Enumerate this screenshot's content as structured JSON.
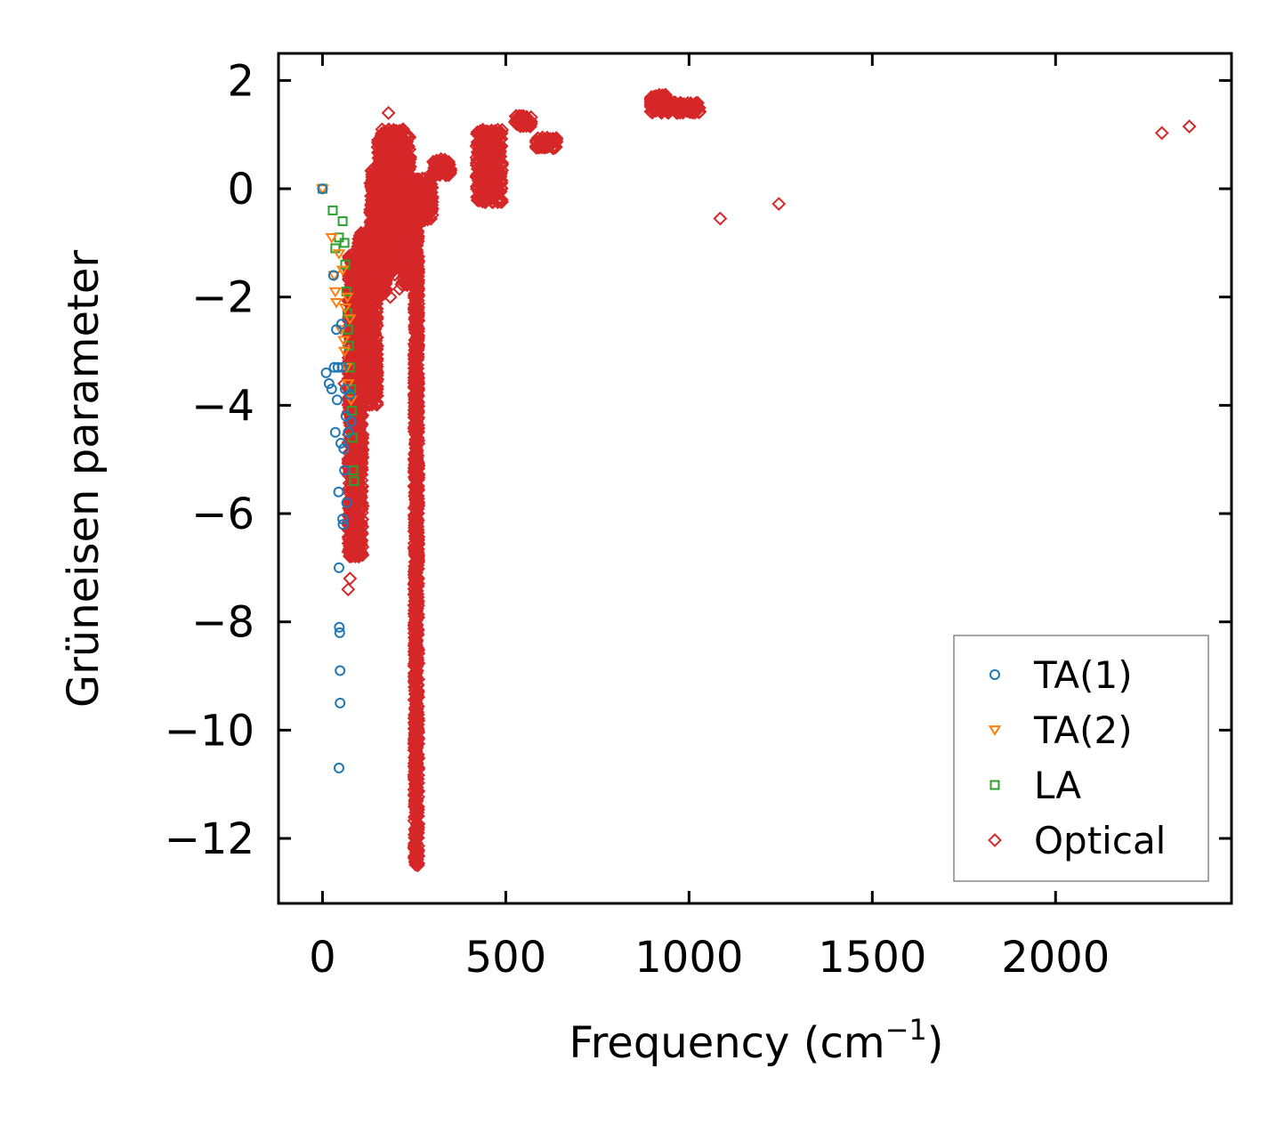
{
  "chart_data": {
    "type": "scatter",
    "title": "",
    "xlabel": "Frequency (cm",
    "xlabel_sup": "−1",
    "xlabel_close": ")",
    "ylabel": "Grüneisen parameter",
    "xlim": [
      -120,
      2480
    ],
    "ylim": [
      -13.2,
      2.5
    ],
    "xticks": [
      0,
      500,
      1000,
      1500,
      2000
    ],
    "yticks": [
      2,
      0,
      -2,
      -4,
      -6,
      -8,
      -10,
      -12
    ],
    "xtick_labels": [
      "0",
      "500",
      "1000",
      "1500",
      "2000"
    ],
    "ytick_labels": [
      "2",
      "0",
      "−2",
      "−4",
      "−6",
      "−8",
      "−10",
      "−12"
    ],
    "legend_position": "bottom-right",
    "series": [
      {
        "name": "TA(1)",
        "marker": "circle",
        "color": "#1f77b4",
        "points": [
          [
            0,
            0
          ],
          [
            10,
            -3.4
          ],
          [
            18,
            -3.6
          ],
          [
            25,
            -3.7
          ],
          [
            30,
            -1.6
          ],
          [
            32,
            -3.3
          ],
          [
            35,
            -4.5
          ],
          [
            38,
            -2.6
          ],
          [
            40,
            -3.9
          ],
          [
            42,
            -3.3
          ],
          [
            44,
            -5.6
          ],
          [
            45,
            -7.0
          ],
          [
            46,
            -8.1
          ],
          [
            47,
            -8.2
          ],
          [
            48,
            -8.9
          ],
          [
            48,
            -9.5
          ],
          [
            45,
            -10.7
          ],
          [
            50,
            -4.7
          ],
          [
            52,
            -2.5
          ],
          [
            54,
            -3.3
          ],
          [
            55,
            -6.1
          ],
          [
            56,
            -6.2
          ],
          [
            58,
            -4.8
          ],
          [
            60,
            -5.2
          ],
          [
            62,
            -3.7
          ],
          [
            64,
            -4.2
          ],
          [
            66,
            -5.8
          ],
          [
            70,
            -4.5
          ],
          [
            75,
            -3.8
          ],
          [
            78,
            -4.3
          ]
        ]
      },
      {
        "name": "TA(2)",
        "marker": "triangle-down",
        "color": "#ff7f0e",
        "points": [
          [
            0,
            0
          ],
          [
            25,
            -0.9
          ],
          [
            32,
            -1.6
          ],
          [
            35,
            -1.9
          ],
          [
            38,
            -2.1
          ],
          [
            45,
            -1.2
          ],
          [
            50,
            -2.6
          ],
          [
            55,
            -1.5
          ],
          [
            58,
            -2.8
          ],
          [
            60,
            -3.0
          ],
          [
            62,
            -2.2
          ],
          [
            65,
            -3.3
          ],
          [
            68,
            -2.0
          ],
          [
            70,
            -3.6
          ],
          [
            75,
            -2.4
          ],
          [
            78,
            -3.9
          ]
        ]
      },
      {
        "name": "LA",
        "marker": "square",
        "color": "#2ca02c",
        "points": [
          [
            0,
            0
          ],
          [
            28,
            -0.4
          ],
          [
            35,
            -1.1
          ],
          [
            45,
            -0.9
          ],
          [
            55,
            -0.6
          ],
          [
            60,
            -1.0
          ],
          [
            62,
            -1.4
          ],
          [
            65,
            -1.9
          ],
          [
            68,
            -2.3
          ],
          [
            70,
            -2.6
          ],
          [
            72,
            -2.9
          ],
          [
            75,
            -3.3
          ],
          [
            78,
            -3.7
          ],
          [
            80,
            -4.1
          ],
          [
            82,
            -4.6
          ],
          [
            84,
            -5.2
          ],
          [
            86,
            -5.4
          ]
        ]
      },
      {
        "name": "Optical",
        "marker": "diamond",
        "color": "#d62728",
        "points": [
          [
            180,
            1.4
          ],
          [
            220,
            1.1
          ],
          [
            1085,
            -0.55
          ],
          [
            1245,
            -0.28
          ],
          [
            2290,
            1.03
          ],
          [
            2365,
            1.15
          ],
          [
            185,
            -2.0
          ],
          [
            210,
            -1.85
          ],
          [
            80,
            -1.3
          ],
          [
            60,
            -3.6
          ],
          [
            75,
            -7.2
          ],
          [
            70,
            -7.4
          ]
        ],
        "dense_clusters": [
          {
            "x_range": [
              70,
              110
            ],
            "y_range": [
              -6.8,
              -1.2
            ]
          },
          {
            "x_range": [
              95,
              150
            ],
            "y_range": [
              -4.0,
              -0.8
            ]
          },
          {
            "x_range": [
              130,
              175
            ],
            "y_range": [
              -2.0,
              0.4
            ]
          },
          {
            "x_range": [
              150,
              200
            ],
            "y_range": [
              -1.6,
              0.9
            ]
          },
          {
            "x_range": [
              160,
              220
            ],
            "y_range": [
              -0.8,
              1.1
            ]
          },
          {
            "x_range": [
              190,
              240
            ],
            "y_range": [
              -0.6,
              1.0
            ]
          },
          {
            "x_range": [
              215,
              245
            ],
            "y_range": [
              -1.8,
              0.2
            ]
          },
          {
            "x_range": [
              240,
              300
            ],
            "y_range": [
              -0.6,
              0.2
            ]
          },
          {
            "x_range": [
              250,
              262
            ],
            "y_range": [
              -12.5,
              -0.2
            ]
          },
          {
            "x_range": [
              300,
              350
            ],
            "y_range": [
              0.25,
              0.55
            ]
          },
          {
            "x_range": [
              420,
              490
            ],
            "y_range": [
              -0.25,
              1.1
            ]
          },
          {
            "x_range": [
              525,
              570
            ],
            "y_range": [
              1.15,
              1.35
            ]
          },
          {
            "x_range": [
              580,
              640
            ],
            "y_range": [
              0.75,
              0.95
            ]
          },
          {
            "x_range": [
              895,
              940
            ],
            "y_range": [
              1.4,
              1.75
            ]
          },
          {
            "x_range": [
              940,
              1030
            ],
            "y_range": [
              1.4,
              1.6
            ]
          }
        ]
      }
    ]
  }
}
